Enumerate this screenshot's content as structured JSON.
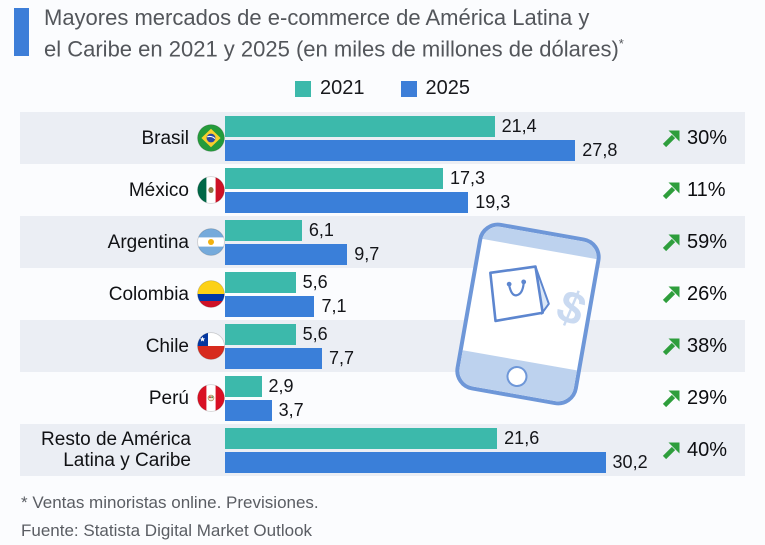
{
  "title": {
    "line1": "Mayores mercados de e-commerce de América Latina y",
    "line2": "el Caribe en 2021 y 2025 (en miles de millones de dólares)",
    "asterisk": "*"
  },
  "legend": [
    {
      "label": "2021",
      "color": "#3cb9ab"
    },
    {
      "label": "2025",
      "color": "#3d7ed8"
    }
  ],
  "chart_data": {
    "type": "bar",
    "orientation": "horizontal",
    "title": "Mayores mercados de e-commerce de América Latina y el Caribe en 2021 y 2025 (en miles de millones de dólares)*",
    "unit": "miles de millones de dólares",
    "value_format": "decimal-comma",
    "grid": false,
    "legend_position": "top",
    "axis_max": 34.6,
    "categories": [
      "Brasil",
      "México",
      "Argentina",
      "Colombia",
      "Chile",
      "Perú",
      "Resto de América Latina y Caribe"
    ],
    "series": [
      {
        "name": "2021",
        "values": [
          21.4,
          17.3,
          6.1,
          5.6,
          5.6,
          2.9,
          21.6
        ]
      },
      {
        "name": "2025",
        "values": [
          27.8,
          19.3,
          9.7,
          7.1,
          7.7,
          3.7,
          30.2
        ]
      }
    ],
    "growth_labels": [
      "30%",
      "11%",
      "59%",
      "26%",
      "38%",
      "29%",
      "40%"
    ],
    "rows": [
      {
        "country": "Brasil",
        "country2": "",
        "flag": "brazil",
        "v2021": "21,4",
        "v2025": "27,8",
        "n2021": 21.4,
        "n2025": 27.8,
        "growth": "30%"
      },
      {
        "country": "México",
        "country2": "",
        "flag": "mexico",
        "v2021": "17,3",
        "v2025": "19,3",
        "n2021": 17.3,
        "n2025": 19.3,
        "growth": "11%"
      },
      {
        "country": "Argentina",
        "country2": "",
        "flag": "argentina",
        "v2021": "6,1",
        "v2025": "9,7",
        "n2021": 6.1,
        "n2025": 9.7,
        "growth": "59%"
      },
      {
        "country": "Colombia",
        "country2": "",
        "flag": "colombia",
        "v2021": "5,6",
        "v2025": "7,1",
        "n2021": 5.6,
        "n2025": 7.1,
        "growth": "26%"
      },
      {
        "country": "Chile",
        "country2": "",
        "flag": "chile",
        "v2021": "5,6",
        "v2025": "7,7",
        "n2021": 5.6,
        "n2025": 7.7,
        "growth": "38%"
      },
      {
        "country": "Perú",
        "country2": "",
        "flag": "peru",
        "v2021": "2,9",
        "v2025": "3,7",
        "n2021": 2.9,
        "n2025": 3.7,
        "growth": "29%"
      },
      {
        "country": "Resto de América",
        "country2": "Latina y Caribe",
        "flag": "",
        "v2021": "21,6",
        "v2025": "30,2",
        "n2021": 21.6,
        "n2025": 30.2,
        "growth": "40%"
      }
    ]
  },
  "illustration": {
    "dollar_glyph": "$"
  },
  "footer": {
    "note": "* Ventas minoristas online. Previsiones.",
    "source": "Fuente: Statista Digital Market Outlook"
  },
  "colors": {
    "bar_2021_teal": "#3cb9ab",
    "bar_2025_blue": "#3a7fd9",
    "accent_blue": "#3d7ed8",
    "growth_green": "#2e9e3c",
    "row_stripe": "#ebeef4",
    "title_text": "#53565b",
    "footer_text": "#5a5d63",
    "phone_outline": "#6e97d8",
    "phone_band": "#bdd2ee",
    "dollar_sign": "#cadaf1"
  }
}
